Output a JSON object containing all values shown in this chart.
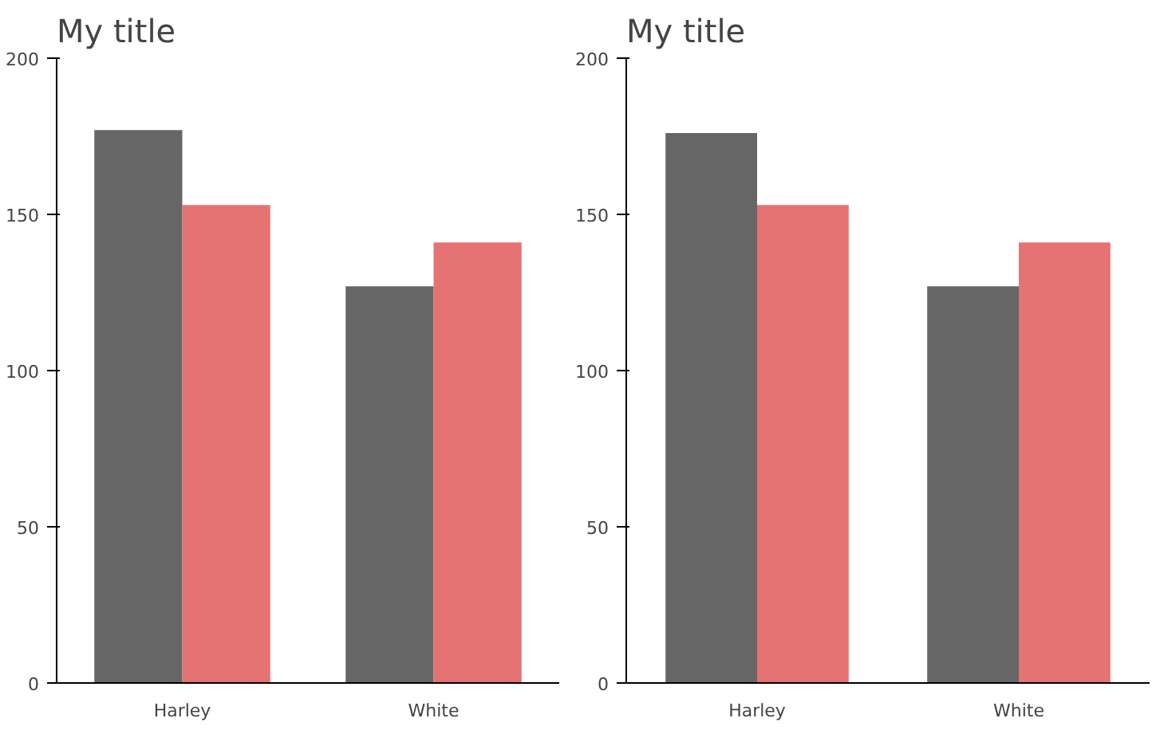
{
  "chart_data": [
    {
      "type": "bar",
      "title": "My title",
      "categories": [
        "Harley",
        "White"
      ],
      "series": [
        {
          "color": "#666666",
          "values": [
            177,
            127
          ]
        },
        {
          "color": "#e57373",
          "values": [
            153,
            141
          ]
        }
      ],
      "ylim": [
        0,
        200
      ],
      "yticks": [
        0,
        50,
        100,
        150,
        200
      ],
      "grid": false
    },
    {
      "type": "bar",
      "title": "My title",
      "categories": [
        "Harley",
        "White"
      ],
      "series": [
        {
          "color": "#666666",
          "values": [
            176,
            127
          ]
        },
        {
          "color": "#e57373",
          "values": [
            153,
            141
          ]
        }
      ],
      "ylim": [
        0,
        200
      ],
      "yticks": [
        0,
        50,
        100,
        150,
        200
      ],
      "grid": false
    }
  ]
}
